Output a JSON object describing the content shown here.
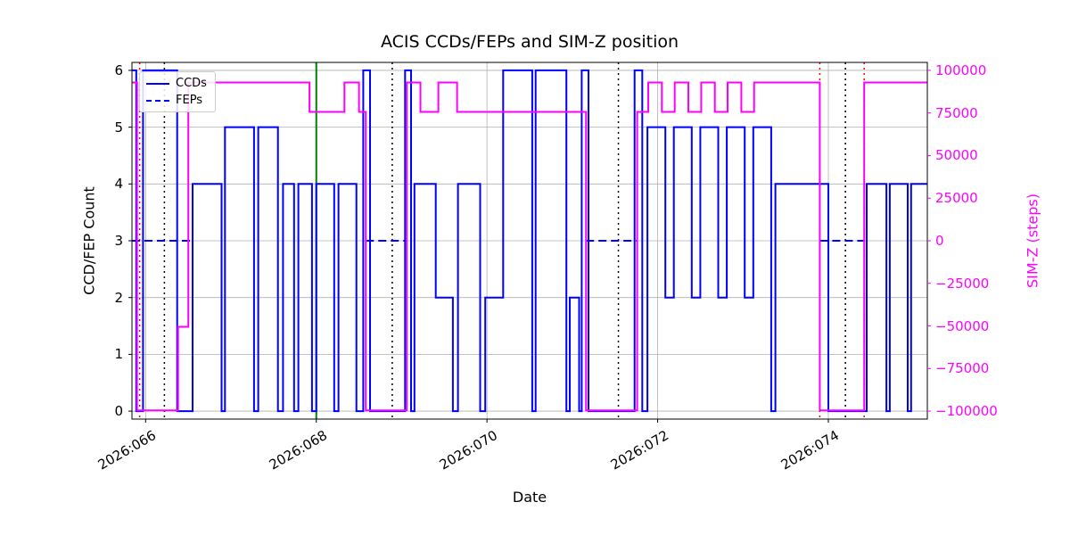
{
  "chart_data": {
    "type": "line",
    "title": "ACIS CCDs/FEPs and SIM-Z position",
    "xlabel": "Date",
    "ylabel_left": "CCD/FEP Count",
    "ylabel_right": "SIM-Z (steps)",
    "xlim": [
      65.84,
      75.16
    ],
    "ylim_left": [
      -0.14,
      6.14
    ],
    "ylim_right": [
      -104667,
      104667
    ],
    "grid": true,
    "legend_position": "upper left",
    "legend": [
      {
        "label": "CCDs",
        "color": "#0000ff",
        "style": "solid"
      },
      {
        "label": "FEPs",
        "color": "#0000ff",
        "style": "dashed"
      }
    ],
    "x_ticks": [
      {
        "value": 66,
        "label": "2026:066"
      },
      {
        "value": 68,
        "label": "2026:068"
      },
      {
        "value": 70,
        "label": "2026:070"
      },
      {
        "value": 72,
        "label": "2026:072"
      },
      {
        "value": 74,
        "label": "2026:074"
      }
    ],
    "y_ticks_left": [
      {
        "value": 0,
        "label": "0"
      },
      {
        "value": 1,
        "label": "1"
      },
      {
        "value": 2,
        "label": "2"
      },
      {
        "value": 3,
        "label": "3"
      },
      {
        "value": 4,
        "label": "4"
      },
      {
        "value": 5,
        "label": "5"
      },
      {
        "value": 6,
        "label": "6"
      }
    ],
    "y_ticks_right": [
      {
        "value": 100000,
        "label": "100000"
      },
      {
        "value": 75000,
        "label": "75000"
      },
      {
        "value": 50000,
        "label": "50000"
      },
      {
        "value": 25000,
        "label": "25000"
      },
      {
        "value": 0,
        "label": "0"
      },
      {
        "value": -25000,
        "label": "−25000"
      },
      {
        "value": -50000,
        "label": "−50000"
      },
      {
        "value": -75000,
        "label": "−75000"
      },
      {
        "value": -100000,
        "label": "−100000"
      }
    ],
    "series": [
      {
        "name": "CCDs",
        "axis": "left",
        "color": "#0000ff",
        "style": "solid",
        "step": true,
        "points": [
          [
            65.84,
            6
          ],
          [
            65.89,
            0
          ],
          [
            65.97,
            6
          ],
          [
            66.37,
            0
          ],
          [
            66.55,
            4
          ],
          [
            66.89,
            0
          ],
          [
            66.93,
            5
          ],
          [
            67.27,
            0
          ],
          [
            67.32,
            5
          ],
          [
            67.55,
            0
          ],
          [
            67.61,
            4
          ],
          [
            67.74,
            0
          ],
          [
            67.79,
            4
          ],
          [
            67.95,
            0
          ],
          [
            68.0,
            4
          ],
          [
            68.21,
            0
          ],
          [
            68.26,
            4
          ],
          [
            68.47,
            0
          ],
          [
            68.55,
            6
          ],
          [
            68.63,
            0
          ],
          [
            69.04,
            6
          ],
          [
            69.11,
            0
          ],
          [
            69.15,
            4
          ],
          [
            69.4,
            2
          ],
          [
            69.6,
            0
          ],
          [
            69.66,
            4
          ],
          [
            69.92,
            0
          ],
          [
            69.98,
            2
          ],
          [
            70.19,
            6
          ],
          [
            70.53,
            0
          ],
          [
            70.57,
            6
          ],
          [
            70.93,
            0
          ],
          [
            70.97,
            2
          ],
          [
            71.08,
            0
          ],
          [
            71.11,
            6
          ],
          [
            71.19,
            0
          ],
          [
            71.73,
            6
          ],
          [
            71.82,
            0
          ],
          [
            71.88,
            5
          ],
          [
            72.09,
            2
          ],
          [
            72.19,
            5
          ],
          [
            72.4,
            2
          ],
          [
            72.5,
            5
          ],
          [
            72.71,
            2
          ],
          [
            72.81,
            5
          ],
          [
            73.02,
            2
          ],
          [
            73.12,
            5
          ],
          [
            73.33,
            0
          ],
          [
            73.38,
            4
          ],
          [
            74.0,
            0
          ],
          [
            74.45,
            4
          ],
          [
            74.68,
            0
          ],
          [
            74.72,
            4
          ],
          [
            74.93,
            0
          ],
          [
            74.97,
            4
          ]
        ]
      },
      {
        "name": "FEPs",
        "axis": "left",
        "color": "#0000ff",
        "style": "dashed",
        "segments": [
          {
            "x0": 65.84,
            "x1": 66.54,
            "y": 3
          },
          {
            "x0": 68.58,
            "x1": 69.06,
            "y": 3
          },
          {
            "x0": 71.16,
            "x1": 71.76,
            "y": 3
          },
          {
            "x0": 73.9,
            "x1": 74.42,
            "y": 3
          }
        ]
      },
      {
        "name": "SIM-Z",
        "axis": "right",
        "color": "#ff00ff",
        "style": "solid",
        "step": true,
        "points": [
          [
            65.84,
            92904
          ],
          [
            65.9,
            -99612
          ],
          [
            66.38,
            -50505
          ],
          [
            66.5,
            92904
          ],
          [
            67.92,
            75624
          ],
          [
            68.33,
            92904
          ],
          [
            68.5,
            75624
          ],
          [
            68.58,
            -99612
          ],
          [
            69.06,
            92904
          ],
          [
            69.22,
            75624
          ],
          [
            69.43,
            92904
          ],
          [
            69.65,
            75624
          ],
          [
            71.16,
            -99612
          ],
          [
            71.76,
            75624
          ],
          [
            71.89,
            92904
          ],
          [
            72.05,
            75624
          ],
          [
            72.2,
            92904
          ],
          [
            72.36,
            75624
          ],
          [
            72.51,
            92904
          ],
          [
            72.67,
            75624
          ],
          [
            72.82,
            92904
          ],
          [
            72.98,
            75624
          ],
          [
            73.13,
            92904
          ],
          [
            73.9,
            -99612
          ],
          [
            74.42,
            92904
          ]
        ]
      }
    ],
    "vlines": [
      {
        "x": 68.0,
        "color": "#008000",
        "style": "solid"
      },
      {
        "x": 66.22,
        "color": "#000000",
        "style": "dotted"
      },
      {
        "x": 68.89,
        "color": "#000000",
        "style": "dotted"
      },
      {
        "x": 71.54,
        "color": "#000000",
        "style": "dotted"
      },
      {
        "x": 74.2,
        "color": "#000000",
        "style": "dotted"
      },
      {
        "x": 65.93,
        "color": "#ff0000",
        "style": "dotted"
      },
      {
        "x": 73.9,
        "color": "#ff0000",
        "style": "dotted"
      },
      {
        "x": 74.42,
        "color": "#ff0000",
        "style": "dotted"
      }
    ],
    "colors": {
      "ccds": "#0000ff",
      "feps": "#0000ff",
      "simz": "#ff00ff",
      "grid": "#b0b0b0",
      "now_line": "#008000",
      "comm_line": "#ff0000",
      "event_line": "#000000"
    }
  }
}
